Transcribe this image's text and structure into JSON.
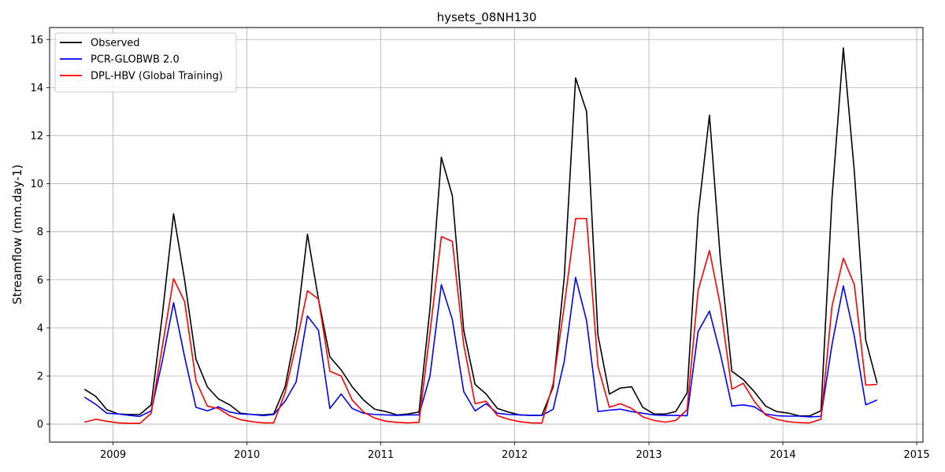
{
  "chart_data": {
    "type": "line",
    "title": "hysets_08NH130",
    "xlabel": "",
    "ylabel": "Streamflow (mm.day-1)",
    "xlim": [
      "2008-07-12",
      "2015-01-18"
    ],
    "ylim": [
      -0.75,
      16.5
    ],
    "x_ticks": [
      "2009",
      "2010",
      "2011",
      "2012",
      "2013",
      "2014",
      "2015"
    ],
    "y_ticks": [
      0,
      2,
      4,
      6,
      8,
      10,
      12,
      14,
      16
    ],
    "grid": true,
    "legend_position": "top-left",
    "x": [
      "2008-10",
      "2008-11",
      "2008-12",
      "2009-01",
      "2009-02",
      "2009-03",
      "2009-04",
      "2009-05",
      "2009-06",
      "2009-07",
      "2009-08",
      "2009-09",
      "2009-10",
      "2009-11",
      "2009-12",
      "2010-01",
      "2010-02",
      "2010-03",
      "2010-04",
      "2010-05",
      "2010-06",
      "2010-07",
      "2010-08",
      "2010-09",
      "2010-10",
      "2010-11",
      "2010-12",
      "2011-01",
      "2011-02",
      "2011-03",
      "2011-04",
      "2011-05",
      "2011-06",
      "2011-07",
      "2011-08",
      "2011-09",
      "2011-10",
      "2011-11",
      "2011-12",
      "2012-01",
      "2012-02",
      "2012-03",
      "2012-04",
      "2012-05",
      "2012-06",
      "2012-07",
      "2012-08",
      "2012-09",
      "2012-10",
      "2012-11",
      "2012-12",
      "2013-01",
      "2013-02",
      "2013-03",
      "2013-04",
      "2013-05",
      "2013-06",
      "2013-07",
      "2013-08",
      "2013-09",
      "2013-10",
      "2013-11",
      "2013-12",
      "2014-01",
      "2014-02",
      "2014-03",
      "2014-04",
      "2014-05",
      "2014-06",
      "2014-07",
      "2014-08",
      "2014-09"
    ],
    "series": [
      {
        "name": "Observed",
        "color": "#000000",
        "values": [
          1.45,
          1.15,
          0.6,
          0.42,
          0.4,
          0.4,
          0.8,
          4.5,
          8.75,
          6.0,
          2.7,
          1.55,
          1.05,
          0.8,
          0.45,
          0.4,
          0.38,
          0.42,
          1.55,
          3.9,
          7.9,
          5.2,
          2.8,
          2.25,
          1.55,
          1.0,
          0.62,
          0.52,
          0.38,
          0.42,
          0.5,
          4.8,
          11.1,
          9.5,
          3.9,
          1.65,
          1.25,
          0.65,
          0.5,
          0.38,
          0.36,
          0.36,
          1.55,
          6.1,
          14.4,
          13.0,
          3.7,
          1.25,
          1.5,
          1.55,
          0.7,
          0.42,
          0.42,
          0.52,
          1.3,
          8.7,
          12.85,
          6.8,
          2.2,
          1.85,
          1.35,
          0.75,
          0.52,
          0.46,
          0.34,
          0.34,
          0.55,
          9.4,
          15.65,
          10.5,
          3.5,
          1.7
        ]
      },
      {
        "name": "PCR-GLOBWB 2.0",
        "color": "#0000ff",
        "values": [
          1.12,
          0.82,
          0.45,
          0.42,
          0.36,
          0.32,
          0.55,
          2.6,
          5.05,
          2.8,
          0.7,
          0.55,
          0.72,
          0.5,
          0.42,
          0.4,
          0.35,
          0.4,
          0.95,
          1.75,
          4.5,
          3.9,
          0.65,
          1.25,
          0.65,
          0.45,
          0.4,
          0.38,
          0.36,
          0.38,
          0.38,
          2.0,
          5.8,
          4.35,
          1.35,
          0.55,
          0.85,
          0.45,
          0.4,
          0.38,
          0.36,
          0.36,
          0.62,
          2.6,
          6.1,
          4.3,
          0.52,
          0.58,
          0.62,
          0.52,
          0.45,
          0.38,
          0.36,
          0.36,
          0.35,
          3.85,
          4.7,
          2.9,
          0.75,
          0.8,
          0.72,
          0.42,
          0.35,
          0.33,
          0.33,
          0.3,
          0.32,
          3.3,
          5.75,
          3.65,
          0.8,
          1.0
        ]
      },
      {
        "name": "DPL-HBV (Global Training)",
        "color": "#ff0000",
        "values": [
          0.08,
          0.2,
          0.12,
          0.05,
          0.03,
          0.03,
          0.45,
          3.2,
          6.05,
          5.1,
          1.8,
          0.75,
          0.65,
          0.35,
          0.18,
          0.1,
          0.05,
          0.05,
          1.3,
          3.3,
          5.55,
          5.2,
          2.2,
          2.0,
          1.0,
          0.5,
          0.25,
          0.12,
          0.07,
          0.05,
          0.07,
          3.8,
          7.8,
          7.6,
          3.3,
          0.85,
          0.95,
          0.35,
          0.2,
          0.1,
          0.05,
          0.04,
          1.7,
          4.9,
          8.55,
          8.55,
          2.4,
          0.7,
          0.85,
          0.65,
          0.3,
          0.15,
          0.08,
          0.15,
          0.6,
          5.55,
          7.22,
          4.9,
          1.45,
          1.7,
          0.95,
          0.38,
          0.2,
          0.1,
          0.06,
          0.05,
          0.2,
          4.9,
          6.9,
          5.8,
          1.62,
          1.65
        ]
      }
    ]
  }
}
